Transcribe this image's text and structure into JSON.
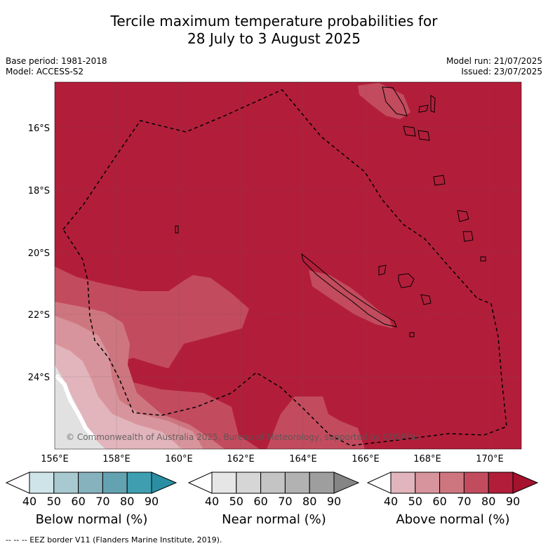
{
  "title_line1": "Tercile maximum temperature probabilities for",
  "title_line2": "28 July to 3 August 2025",
  "meta": {
    "base_period": "Base period: 1981-2018",
    "model": "Model: ACCESS-S2",
    "model_run": "Model run: 21/07/2025",
    "issued": "Issued: 23/07/2025"
  },
  "map": {
    "lat_labels": [
      "16°S",
      "18°S",
      "20°S",
      "22°S",
      "24°S"
    ],
    "lon_labels": [
      "156°E",
      "158°E",
      "160°E",
      "162°E",
      "164°E",
      "166°E",
      "168°E",
      "170°E"
    ],
    "copyright": "© Commonwealth of Australia 2025, Bureau of Meteorology, supported by COSPPac",
    "dominant_category": "Above normal",
    "colors": {
      "above_80_90": "#b21e3a",
      "above_70_80": "#c34b5e",
      "above_60_70": "#ce7680",
      "above_50_60": "#d8949c",
      "above_40_50": "#e1b5bb",
      "near": "#e1e1e1",
      "coast": "#000000"
    }
  },
  "colorbars": [
    {
      "label": "Below normal (%)",
      "ticks": [
        "40",
        "50",
        "60",
        "70",
        "80",
        "90"
      ],
      "colors": [
        "#ffffff",
        "#cfe4e9",
        "#a9c9d0",
        "#86b2bd",
        "#63a2b1",
        "#3f9fb0",
        "#2a8fa3"
      ]
    },
    {
      "label": "Near normal (%)",
      "ticks": [
        "40",
        "50",
        "60",
        "70",
        "80",
        "90"
      ],
      "colors": [
        "#ffffff",
        "#e6e6e6",
        "#d6d6d6",
        "#c4c4c4",
        "#b2b2b2",
        "#9e9e9e",
        "#858585"
      ]
    },
    {
      "label": "Above normal (%)",
      "ticks": [
        "40",
        "50",
        "60",
        "70",
        "80",
        "90"
      ],
      "colors": [
        "#ffffff",
        "#e1b5bb",
        "#d8949c",
        "#ce7680",
        "#c34b5e",
        "#b21e3a",
        "#a4122e"
      ]
    }
  ],
  "footer": "--  --  -- EEZ border V11 (Flanders Marine Institute, 2019)."
}
